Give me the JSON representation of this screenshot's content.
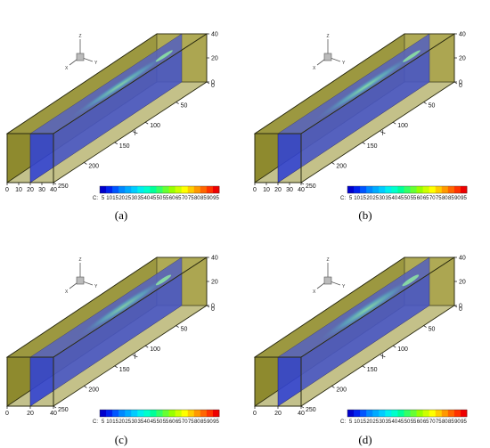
{
  "panels": [
    {
      "id": "a",
      "caption": "(a)",
      "cross_ticks": [
        "0",
        "10",
        "20",
        "30",
        "40"
      ],
      "plume": {
        "start": 0.24,
        "end": 0.94,
        "width": 0.26,
        "peak": 0.55
      }
    },
    {
      "id": "b",
      "caption": "(b)",
      "cross_ticks": [
        "0",
        "10",
        "20",
        "30",
        "40"
      ],
      "plume": {
        "start": 0.22,
        "end": 0.94,
        "width": 0.28,
        "peak": 0.7
      }
    },
    {
      "id": "c",
      "caption": "(c)",
      "cross_ticks": [
        "0",
        "20",
        "40"
      ],
      "plume": {
        "start": 0.3,
        "end": 0.93,
        "width": 0.3,
        "peak": 0.45
      }
    },
    {
      "id": "d",
      "caption": "(d)",
      "cross_ticks": [
        "0",
        "20",
        "40"
      ],
      "plume": {
        "start": 0.25,
        "end": 0.93,
        "width": 0.34,
        "peak": 0.6
      }
    }
  ],
  "z_ticks": [
    "0",
    "20",
    "40"
  ],
  "x_ticks": [
    "0",
    "50",
    "100",
    "150",
    "200",
    "250"
  ],
  "x_axis_label": "x",
  "triad": {
    "x": "X",
    "y": "Y",
    "z": "Z"
  },
  "colorbar": {
    "label": "C:",
    "levels": [
      "5",
      "10",
      "15",
      "20",
      "25",
      "30",
      "35",
      "40",
      "45",
      "50",
      "55",
      "60",
      "65",
      "70",
      "75",
      "80",
      "85",
      "90",
      "95"
    ],
    "colors": [
      "#0000cc",
      "#0022ee",
      "#0055ff",
      "#0088ff",
      "#00aaff",
      "#00ccff",
      "#00eeee",
      "#00ffcc",
      "#00ff99",
      "#33ff66",
      "#66ff33",
      "#99ff00",
      "#ccff00",
      "#ffff00",
      "#ffcc00",
      "#ff9900",
      "#ff6600",
      "#ff3300",
      "#ee0000"
    ]
  },
  "colors": {
    "box_fill": "#8e8a2e",
    "box_edge": "#2a2a10",
    "slice": "#3344d0",
    "plume_core": "#7fffb0",
    "plume_mid": "#33c0e0"
  }
}
